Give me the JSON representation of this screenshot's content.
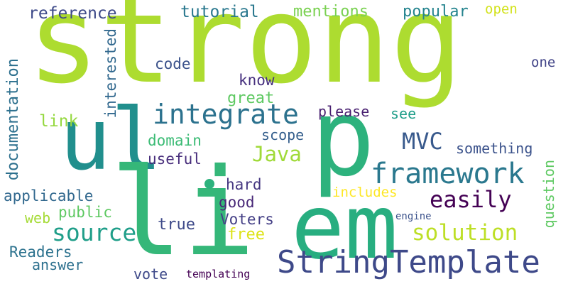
{
  "words": [
    {
      "id": "strong",
      "text": "strong",
      "color": "#addc30"
    },
    {
      "id": "ul",
      "text": "ul",
      "color": "#218f8d"
    },
    {
      "id": "li",
      "text": "li",
      "color": "#35b779"
    },
    {
      "id": "p",
      "text": "p",
      "color": "#2db27d"
    },
    {
      "id": "em",
      "text": "em",
      "color": "#28ae80"
    },
    {
      "id": "stringtemplate",
      "text": "StringTemplate",
      "color": "#3e4989"
    },
    {
      "id": "framework",
      "text": "framework",
      "color": "#2a788e"
    },
    {
      "id": "integrate",
      "text": "integrate",
      "color": "#2c728e"
    },
    {
      "id": "source",
      "text": "source",
      "color": "#1f9e89"
    },
    {
      "id": "solution",
      "text": "solution",
      "color": "#bddf26"
    },
    {
      "id": "easily",
      "text": "easily",
      "color": "#440154"
    },
    {
      "id": "java",
      "text": "Java",
      "color": "#a0da39"
    },
    {
      "id": "mvc",
      "text": "MVC",
      "color": "#38598c"
    },
    {
      "id": "reference",
      "text": "reference",
      "color": "#3e4a89"
    },
    {
      "id": "tutorial",
      "text": "tutorial",
      "color": "#2a788e"
    },
    {
      "id": "mentions",
      "text": "mentions",
      "color": "#7ad151"
    },
    {
      "id": "popular",
      "text": "popular",
      "color": "#25848e"
    },
    {
      "id": "open",
      "text": "open",
      "color": "#d2e21b"
    },
    {
      "id": "code",
      "text": "code",
      "color": "#3b528b"
    },
    {
      "id": "one",
      "text": "one",
      "color": "#404387"
    },
    {
      "id": "know",
      "text": "know",
      "color": "#46307e"
    },
    {
      "id": "great",
      "text": "great",
      "color": "#5ec962"
    },
    {
      "id": "please",
      "text": "please",
      "color": "#481f70"
    },
    {
      "id": "see",
      "text": "see",
      "color": "#1f9e89"
    },
    {
      "id": "link",
      "text": "link",
      "color": "#95d840"
    },
    {
      "id": "domain",
      "text": "domain",
      "color": "#3bbb75"
    },
    {
      "id": "scope",
      "text": "scope",
      "color": "#355f8d"
    },
    {
      "id": "useful",
      "text": "useful",
      "color": "#472d7b"
    },
    {
      "id": "something",
      "text": "something",
      "color": "#3b528b"
    },
    {
      "id": "hard",
      "text": "hard",
      "color": "#453781"
    },
    {
      "id": "good",
      "text": "good",
      "color": "#482878"
    },
    {
      "id": "includes",
      "text": "includes",
      "color": "#fde725"
    },
    {
      "id": "applicable",
      "text": "applicable",
      "color": "#31688e"
    },
    {
      "id": "public",
      "text": "public",
      "color": "#5ec962"
    },
    {
      "id": "web",
      "text": "web",
      "color": "#a5db36"
    },
    {
      "id": "voters",
      "text": "Voters",
      "color": "#433e85"
    },
    {
      "id": "true",
      "text": "true",
      "color": "#3e4a89"
    },
    {
      "id": "free",
      "text": "free",
      "color": "#dde318"
    },
    {
      "id": "engine",
      "text": "engine",
      "color": "#3b528b"
    },
    {
      "id": "readers",
      "text": "Readers",
      "color": "#2c728e"
    },
    {
      "id": "answer",
      "text": "answer",
      "color": "#2d708e"
    },
    {
      "id": "vote",
      "text": "vote",
      "color": "#3e4989"
    },
    {
      "id": "templating",
      "text": "templating",
      "color": "#440154"
    },
    {
      "id": "documentation",
      "text": "documentation",
      "color": "#2d708e"
    },
    {
      "id": "interested",
      "text": "interested",
      "color": "#31688e"
    },
    {
      "id": "question",
      "text": "question",
      "color": "#5ec962"
    }
  ]
}
